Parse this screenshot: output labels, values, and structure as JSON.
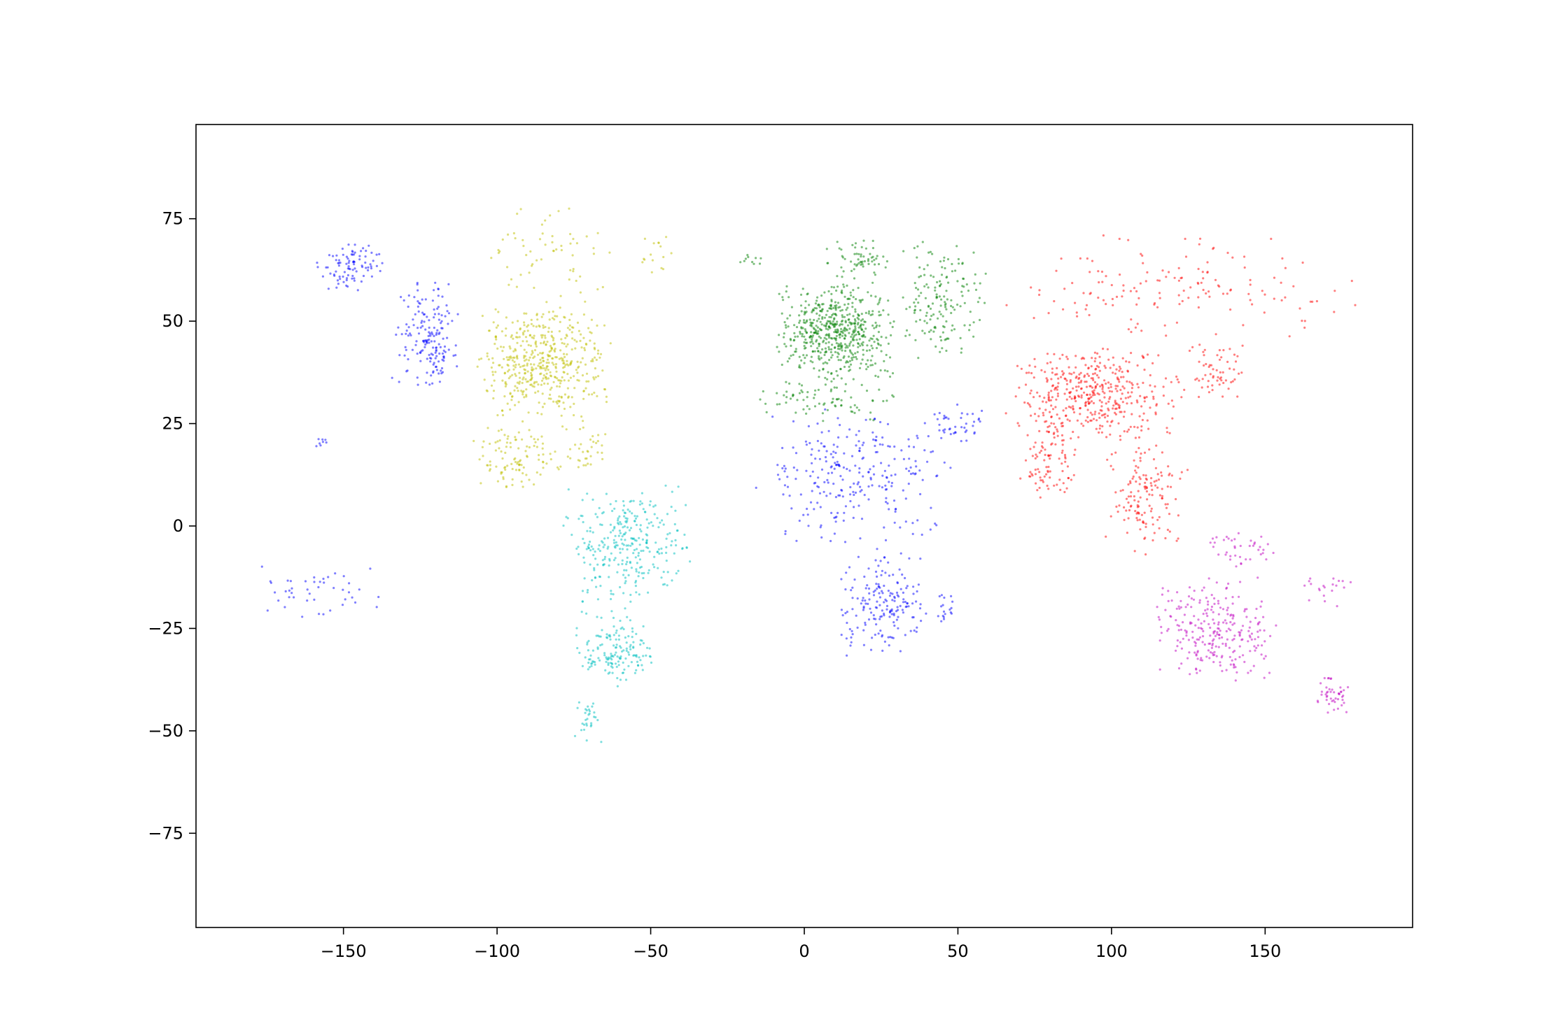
{
  "chart_data": {
    "type": "scatter",
    "title": "",
    "xlabel": "",
    "ylabel": "",
    "xlim": [
      -198,
      198
    ],
    "ylim": [
      -98,
      98
    ],
    "x_ticks": [
      -150,
      -100,
      -50,
      0,
      50,
      100,
      150
    ],
    "y_ticks": [
      -75,
      -50,
      -25,
      0,
      25,
      50,
      75
    ],
    "x_tick_labels": [
      "−150",
      "−100",
      "−50",
      "0",
      "50",
      "100",
      "150"
    ],
    "y_tick_labels": [
      "−75",
      "−50",
      "−25",
      "0",
      "25",
      "50",
      "75"
    ],
    "grid": false,
    "legend": "none",
    "marker_alpha": 0.5,
    "clusters": [
      {
        "color": "#0000ff",
        "regions": [
          {
            "lon": [
              -160,
              -135
            ],
            "lat": [
              57,
              70
            ],
            "n": 90
          },
          {
            "lon": [
              -135,
              -112
            ],
            "lat": [
              32,
              62
            ],
            "n": 130
          },
          {
            "lon": [
              -122,
              -116
            ],
            "lat": [
              33,
              49
            ],
            "n": 40
          },
          {
            "lon": [
              -160,
              -155
            ],
            "lat": [
              19,
              22
            ],
            "n": 8
          },
          {
            "lon": [
              -178,
              -135
            ],
            "lat": [
              -24,
              -9
            ],
            "n": 45
          },
          {
            "lon": [
              -17,
              50
            ],
            "lat": [
              -5,
              30
            ],
            "n": 260
          },
          {
            "lon": [
              10,
              42
            ],
            "lat": [
              -34,
              -5
            ],
            "n": 180
          },
          {
            "lon": [
              43,
              50
            ],
            "lat": [
              -25,
              -12
            ],
            "n": 18
          },
          {
            "lon": [
              40,
              60
            ],
            "lat": [
              20,
              30
            ],
            "n": 40
          }
        ]
      },
      {
        "color": "#bfbf00",
        "regions": [
          {
            "lon": [
              -108,
              -62
            ],
            "lat": [
              25,
              55
            ],
            "n": 480
          },
          {
            "lon": [
              -108,
              -62
            ],
            "lat": [
              55,
              80
            ],
            "n": 60
          },
          {
            "lon": [
              -108,
              -80
            ],
            "lat": [
              8,
              25
            ],
            "n": 100
          },
          {
            "lon": [
              -85,
              -60
            ],
            "lat": [
              12,
              25
            ],
            "n": 40
          },
          {
            "lon": [
              -56,
              -42
            ],
            "lat": [
              60,
              72
            ],
            "n": 16
          }
        ]
      },
      {
        "color": "#00bfbf",
        "regions": [
          {
            "lon": [
              -80,
              -35
            ],
            "lat": [
              -20,
              12
            ],
            "n": 300
          },
          {
            "lon": [
              -75,
              -48
            ],
            "lat": [
              -40,
              -20
            ],
            "n": 160
          },
          {
            "lon": [
              -75,
              -65
            ],
            "lat": [
              -55,
              -40
            ],
            "n": 30
          }
        ]
      },
      {
        "color": "#008000",
        "regions": [
          {
            "lon": [
              -10,
              30
            ],
            "lat": [
              35,
              60
            ],
            "n": 560
          },
          {
            "lon": [
              30,
              60
            ],
            "lat": [
              40,
              70
            ],
            "n": 160
          },
          {
            "lon": [
              -20,
              35
            ],
            "lat": [
              25,
              37
            ],
            "n": 80
          },
          {
            "lon": [
              5,
              30
            ],
            "lat": [
              60,
              70
            ],
            "n": 60
          },
          {
            "lon": [
              -24,
              -13
            ],
            "lat": [
              63,
              67
            ],
            "n": 10
          }
        ]
      },
      {
        "color": "#ff0000",
        "regions": [
          {
            "lon": [
              60,
              180
            ],
            "lat": [
              45,
              72
            ],
            "n": 150
          },
          {
            "lon": [
              65,
              125
            ],
            "lat": [
              20,
              45
            ],
            "n": 420
          },
          {
            "lon": [
              70,
              90
            ],
            "lat": [
              5,
              28
            ],
            "n": 90
          },
          {
            "lon": [
              95,
              125
            ],
            "lat": [
              -8,
              22
            ],
            "n": 140
          },
          {
            "lon": [
              125,
              145
            ],
            "lat": [
              30,
              45
            ],
            "n": 60
          }
        ]
      },
      {
        "color": "#bf00bf",
        "regions": [
          {
            "lon": [
              113,
              154
            ],
            "lat": [
              -39,
              -12
            ],
            "n": 260
          },
          {
            "lon": [
              130,
              155
            ],
            "lat": [
              -10,
              -1
            ],
            "n": 40
          },
          {
            "lon": [
              166,
              178
            ],
            "lat": [
              -47,
              -35
            ],
            "n": 45
          },
          {
            "lon": [
              160,
              180
            ],
            "lat": [
              -22,
              -10
            ],
            "n": 20
          }
        ]
      }
    ]
  }
}
